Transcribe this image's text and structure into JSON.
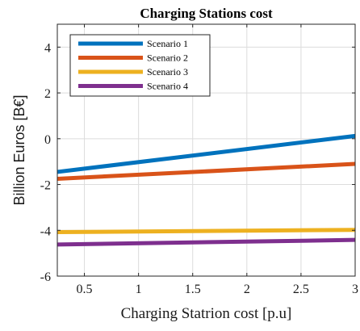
{
  "chart_data": {
    "type": "line",
    "title": "Charging Stations cost",
    "xlabel": "Charging Statrion cost [p.u]",
    "ylabel": "Billion Euros [B€]",
    "xlim": [
      0.25,
      3
    ],
    "ylim": [
      -6,
      5
    ],
    "xticks": [
      0.5,
      1,
      1.5,
      2,
      2.5,
      3
    ],
    "xtick_labels": [
      "0.5",
      "1",
      "1.5",
      "2",
      "2.5",
      "3"
    ],
    "yticks": [
      -6,
      -4,
      -2,
      0,
      2,
      4
    ],
    "ytick_labels": [
      "-6",
      "-4",
      "-2",
      "0",
      "2",
      "4"
    ],
    "grid": true,
    "legend_position": "top-left",
    "series": [
      {
        "name": "Scenario 1",
        "color": "#0072BD",
        "x": [
          0.25,
          3
        ],
        "y": [
          -1.45,
          0.12
        ]
      },
      {
        "name": "Scenario 2",
        "color": "#D95319",
        "x": [
          0.25,
          3
        ],
        "y": [
          -1.75,
          -1.1
        ]
      },
      {
        "name": "Scenario 3",
        "color": "#EDB120",
        "x": [
          0.25,
          3
        ],
        "y": [
          -4.08,
          -3.98
        ]
      },
      {
        "name": "Scenario 4",
        "color": "#7E2F8E",
        "x": [
          0.25,
          3
        ],
        "y": [
          -4.62,
          -4.42
        ]
      }
    ]
  }
}
